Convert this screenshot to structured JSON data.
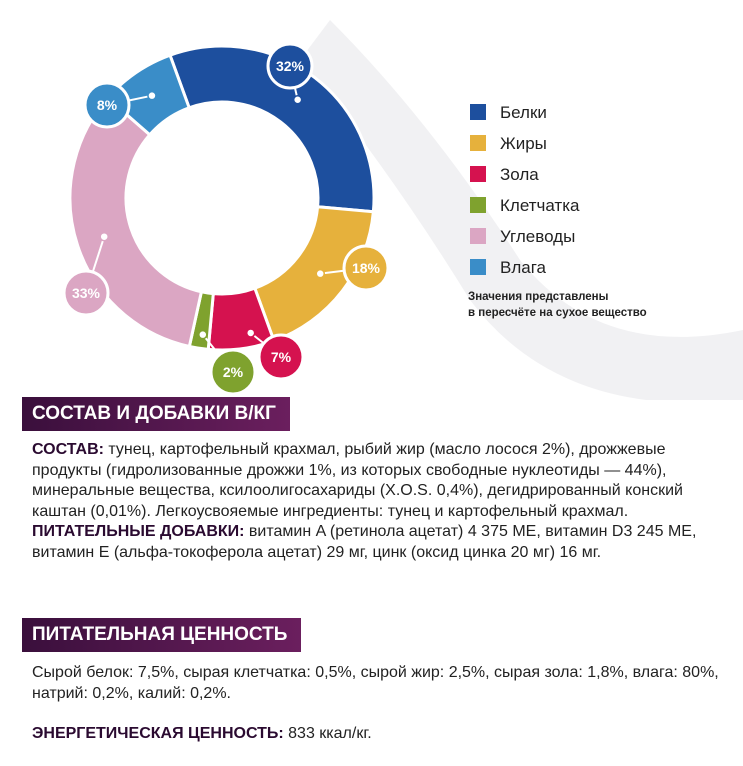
{
  "chart_data": {
    "type": "donut",
    "categories": [
      "Белки",
      "Жиры",
      "Зола",
      "Клетчатка",
      "Углеводы",
      "Влага"
    ],
    "values": [
      32,
      18,
      7,
      2,
      33,
      8
    ],
    "value_labels": [
      "32%",
      "18%",
      "7%",
      "2%",
      "33%",
      "8%"
    ],
    "colors": [
      "#1d4f9e",
      "#e6b13c",
      "#d5124f",
      "#7fa22e",
      "#dba6c3",
      "#3a8dc8"
    ],
    "note": [
      "Значения представлены",
      "в пересчёте на сухое вещество"
    ]
  },
  "sections": [
    {
      "title": "СОСТАВ И ДОБАВКИ В/КГ",
      "paragraphs": [
        {
          "label": "СОСТАВ:",
          "text": "тунец, картофельный крахмал, рыбий жир (масло лосося 2%), дрожжевые продукты (гидролизованные дрожжи 1%, из которых свободные нуклеотиды — 44%), минеральные вещества, ксилоолигосахариды (X.O.S. 0,4%), дегидрированный конский каштан (0,01%). Легкоусвояемые ингредиенты: тунец и картофельный крахмал."
        },
        {
          "label": "ПИТАТЕЛЬНЫЕ ДОБАВКИ:",
          "text": "витамин A (ретинола ацетат) 4 375 МЕ, витамин D3 245 МЕ, витамин E (альфа-токоферола ацетат) 29 мг, цинк (оксид цинка 20 мг) 16 мг."
        }
      ]
    },
    {
      "title": "ПИТАТЕЛЬНАЯ ЦЕННОСТЬ",
      "paragraphs": [
        {
          "text": "Сырой белок: 7,5%, сырая клетчатка: 0,5%, сырой жир: 2,5%, сырая зола: 1,8%, влага: 80%, натрий: 0,2%, калий: 0,2%."
        },
        {
          "label": "ЭНЕРГЕТИЧЕСКАЯ ЦЕННОСТЬ:",
          "text": "833 ккал/кг."
        }
      ]
    }
  ]
}
